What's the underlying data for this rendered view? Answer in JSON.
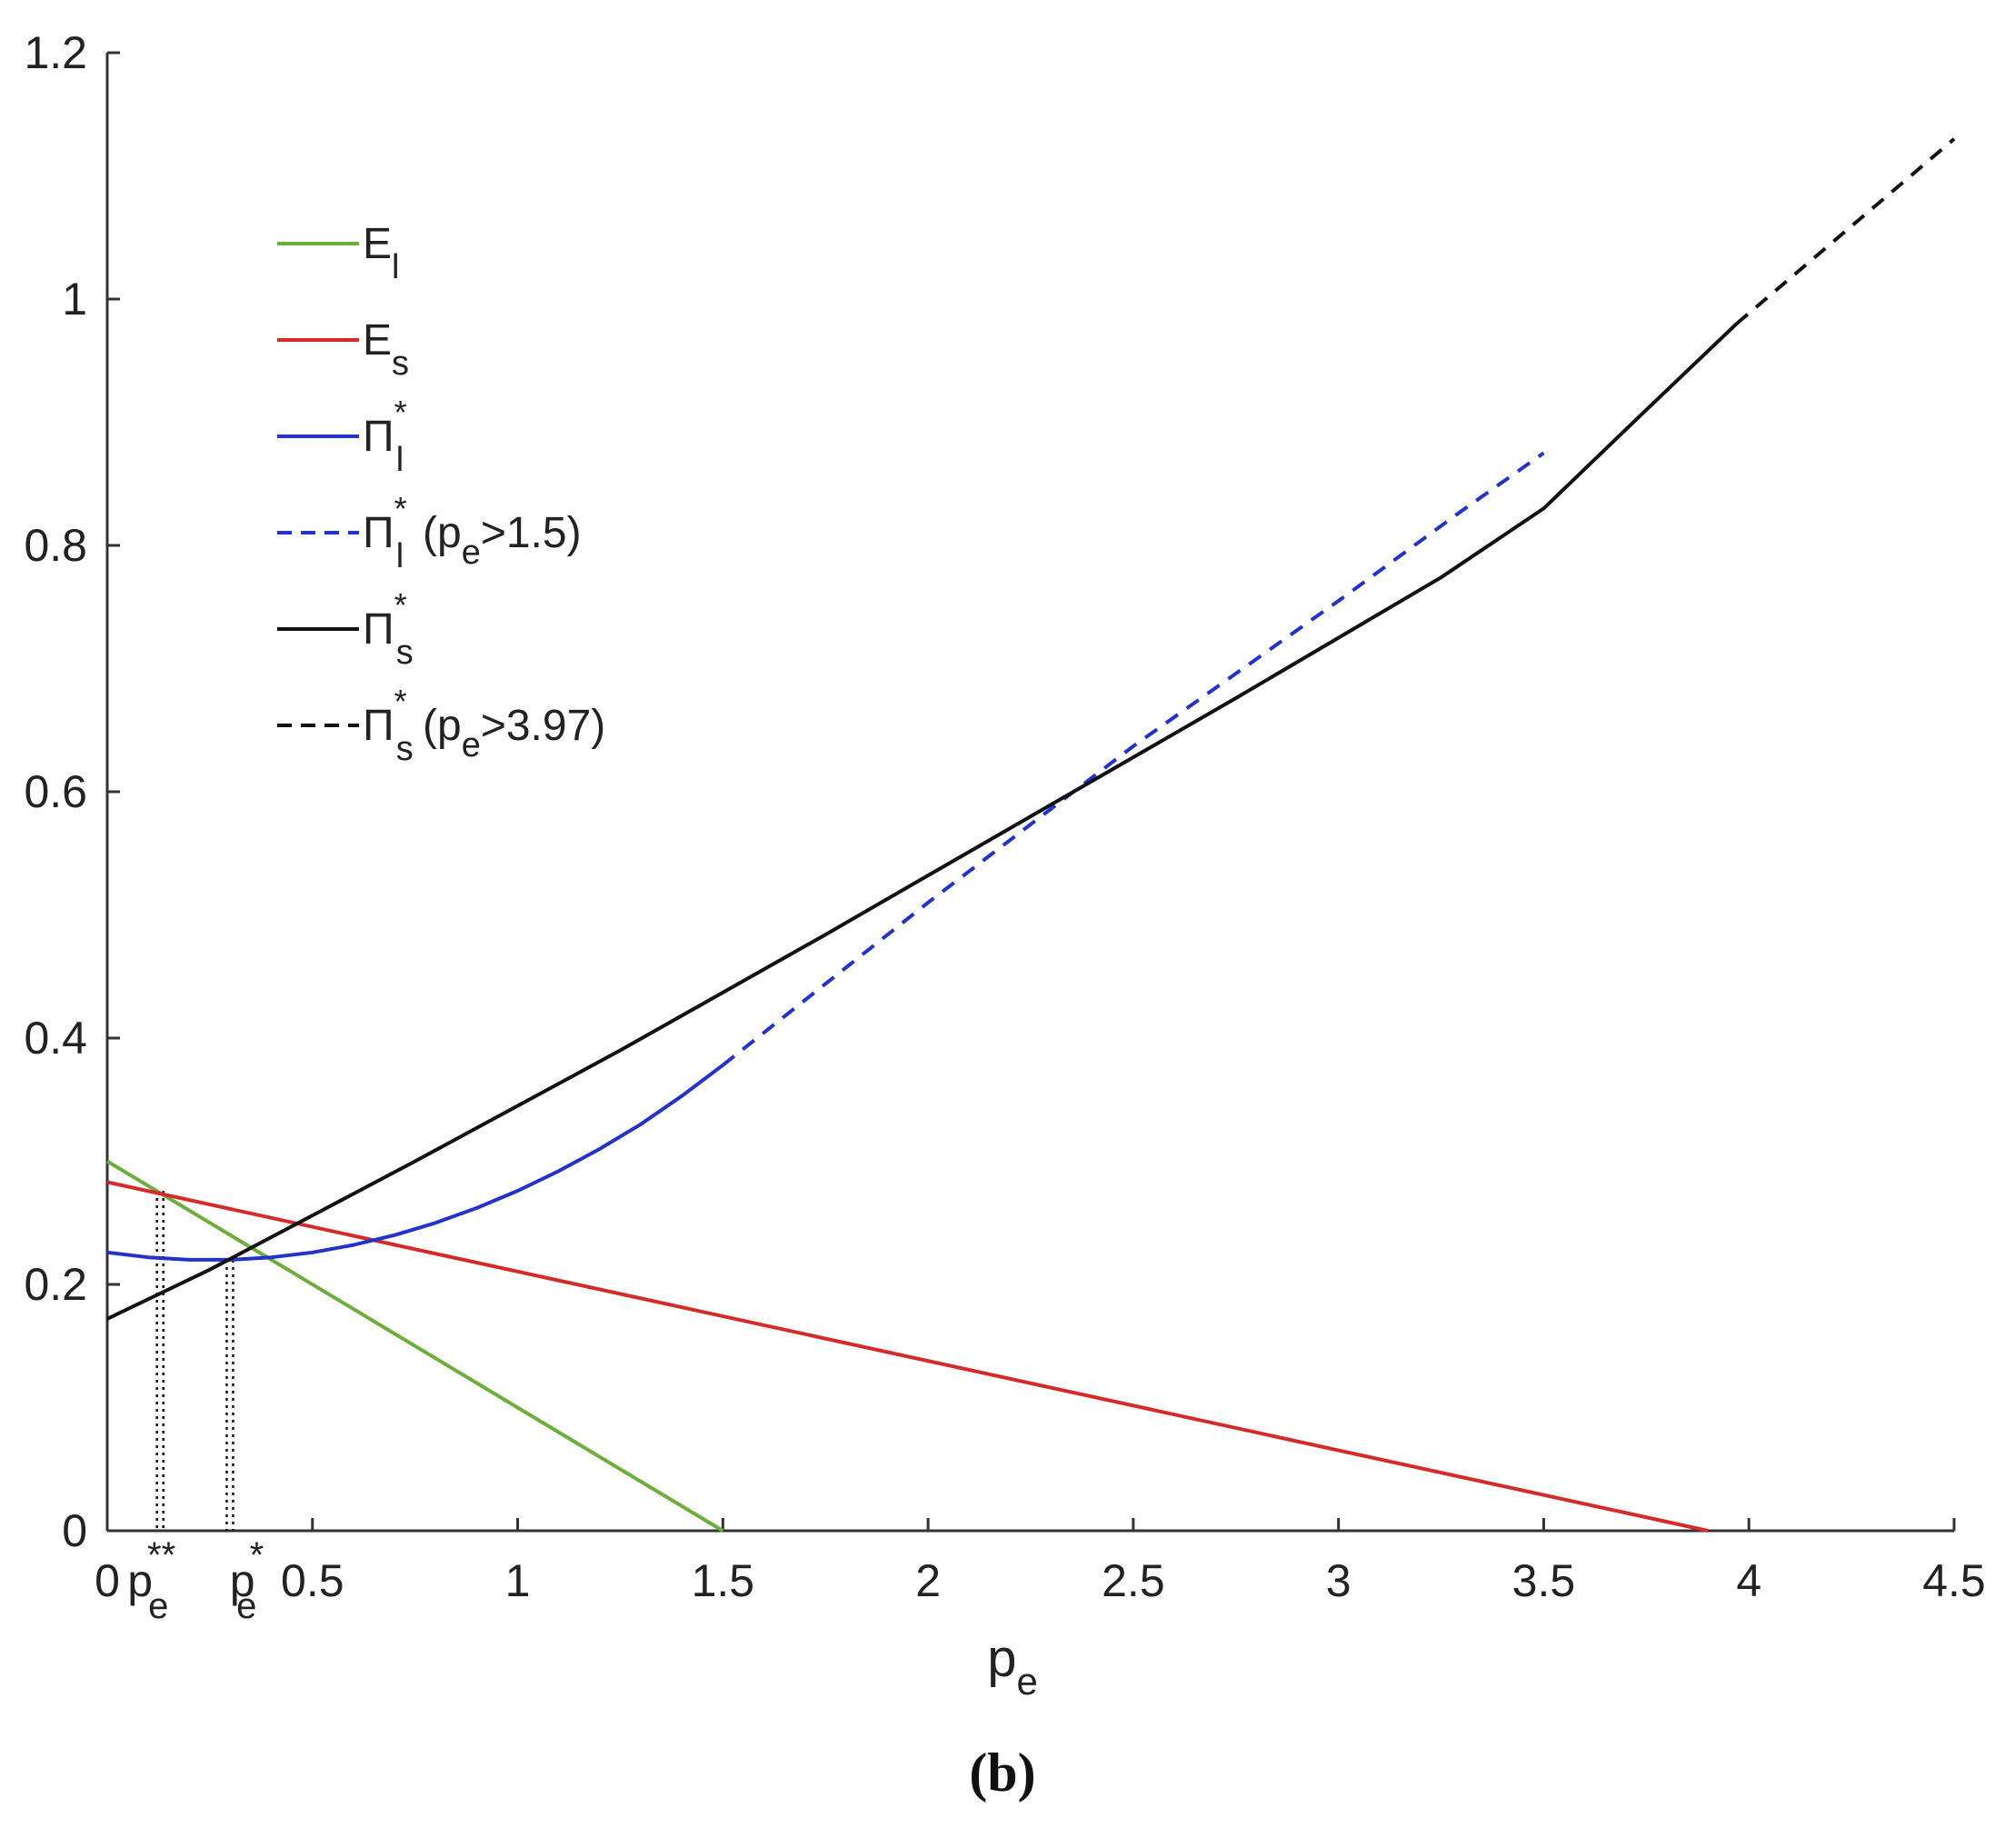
{
  "chart_data": {
    "type": "line",
    "panel_label": "(b)",
    "xlabel": {
      "main": "p",
      "sub": "e"
    },
    "ylabel": "",
    "xlim": [
      0,
      4.5
    ],
    "ylim": [
      0,
      1.2
    ],
    "xticks": [
      {
        "value": 0,
        "label": "0"
      },
      {
        "value": 0.5,
        "label": "0.5"
      },
      {
        "value": 1,
        "label": "1"
      },
      {
        "value": 1.5,
        "label": "1.5"
      },
      {
        "value": 2,
        "label": "2"
      },
      {
        "value": 2.5,
        "label": "2.5"
      },
      {
        "value": 3,
        "label": "3"
      },
      {
        "value": 3.5,
        "label": "3.5"
      },
      {
        "value": 4,
        "label": "4"
      },
      {
        "value": 4.5,
        "label": "4.5"
      }
    ],
    "yticks": [
      {
        "value": 0,
        "label": "0"
      },
      {
        "value": 0.2,
        "label": "0.2"
      },
      {
        "value": 0.4,
        "label": "0.4"
      },
      {
        "value": 0.6,
        "label": "0.6"
      },
      {
        "value": 0.8,
        "label": "0.8"
      },
      {
        "value": 1,
        "label": "1"
      },
      {
        "value": 1.2,
        "label": "1.2"
      }
    ],
    "grid": false,
    "legend_position": "top-left",
    "series": [
      {
        "id": "E_l",
        "name": "E",
        "sub": "l",
        "sup": "",
        "suffix": "",
        "color": "#6cae3c",
        "dash": "solid",
        "x": [
          0,
          1.5
        ],
        "y": [
          0.3,
          0
        ]
      },
      {
        "id": "E_s",
        "name": "E",
        "sub": "s",
        "sup": "",
        "suffix": "",
        "color": "#d42a2a",
        "dash": "solid",
        "x": [
          0,
          3.9
        ],
        "y": [
          0.283,
          0
        ]
      },
      {
        "id": "Pi_l",
        "name": "Π",
        "sub": "l",
        "sup": "*",
        "suffix": "",
        "color": "#2332c8",
        "dash": "solid",
        "x": [
          0,
          0.1,
          0.2,
          0.3,
          0.4,
          0.5,
          0.6,
          0.7,
          0.8,
          0.9,
          1.0,
          1.1,
          1.2,
          1.3,
          1.4,
          1.5
        ],
        "y": [
          0.226,
          0.222,
          0.22,
          0.22,
          0.222,
          0.226,
          0.232,
          0.24,
          0.25,
          0.262,
          0.276,
          0.292,
          0.31,
          0.33,
          0.353,
          0.378
        ]
      },
      {
        "id": "Pi_l_dash",
        "name": "Π",
        "sub": "l",
        "sup": "*",
        "suffix": " (p<sub>e</sub>>1.5)",
        "suffix_text": "(p",
        "suffix_sub": "e",
        "suffix_tail": ">1.5)",
        "color": "#2332c8",
        "dash": "dashed",
        "x": [
          1.5,
          2.0,
          2.5,
          3.0,
          3.3,
          3.5
        ],
        "y": [
          0.378,
          0.51,
          0.637,
          0.755,
          0.828,
          0.875
        ]
      },
      {
        "id": "Pi_s",
        "name": "Π",
        "sub": "s",
        "sup": "*",
        "suffix": "",
        "color": "#111111",
        "dash": "solid",
        "x": [
          0,
          0.25,
          0.5,
          0.75,
          1.0,
          1.25,
          1.5,
          1.75,
          2.0,
          2.25,
          2.5,
          2.75,
          3.0,
          3.25,
          3.5,
          3.75,
          3.97
        ],
        "y": [
          0.172,
          0.212,
          0.256,
          0.3,
          0.345,
          0.39,
          0.437,
          0.484,
          0.532,
          0.58,
          0.628,
          0.676,
          0.725,
          0.774,
          0.83,
          0.91,
          0.98
        ]
      },
      {
        "id": "Pi_s_dash",
        "name": "Π",
        "sub": "s",
        "sup": "*",
        "suffix_text": "(p",
        "suffix_sub": "e",
        "suffix_tail": ">3.97)",
        "color": "#111111",
        "dash": "dashed",
        "x": [
          3.97,
          4.5
        ],
        "y": [
          0.98,
          1.13
        ]
      }
    ],
    "annotations": [
      {
        "id": "pe_double_star",
        "x": 0.13,
        "y_top": 0.276,
        "label": "p",
        "sub": "e",
        "sup": "**"
      },
      {
        "id": "pe_star",
        "x": 0.3,
        "y_top": 0.22,
        "label": "p",
        "sub": "e",
        "sup": "*"
      }
    ]
  }
}
